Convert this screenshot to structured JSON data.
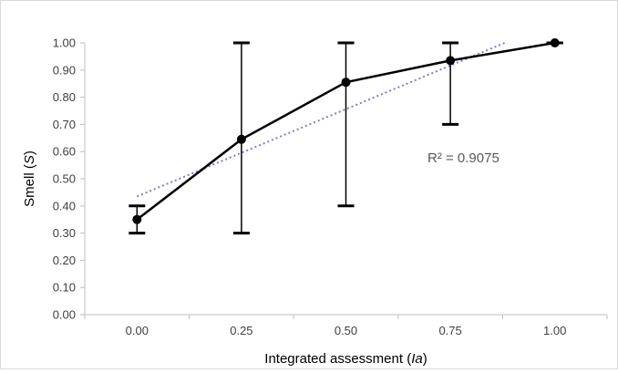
{
  "chart_data": {
    "type": "line",
    "xlabel_parts": [
      "Integrated assessment (",
      "Ia",
      ")"
    ],
    "ylabel_parts": [
      "Smell (",
      "S",
      ")"
    ],
    "x_ticks": [
      "0.00",
      "0.25",
      "0.50",
      "0.75",
      "1.00"
    ],
    "y_ticks": [
      "0.00",
      "0.10",
      "0.20",
      "0.30",
      "0.40",
      "0.50",
      "0.60",
      "0.70",
      "0.80",
      "0.90",
      "1.00"
    ],
    "ylim": [
      0,
      1
    ],
    "series": [
      {
        "x": [
          0.0,
          0.25,
          0.5,
          0.75,
          1.0
        ],
        "y": [
          0.35,
          0.645,
          0.855,
          0.935,
          1.0
        ],
        "error_low": [
          0.3,
          0.3,
          0.4,
          0.7,
          1.0
        ],
        "error_high": [
          0.4,
          1.0,
          1.0,
          1.0,
          1.0
        ],
        "color": "#000000"
      }
    ],
    "trendline": {
      "type": "linear",
      "color": "#8080c0",
      "start": [
        0.0,
        0.435
      ],
      "end": [
        0.88,
        1.0
      ],
      "r2_label": "R² = 0.9075"
    },
    "grid": false
  }
}
